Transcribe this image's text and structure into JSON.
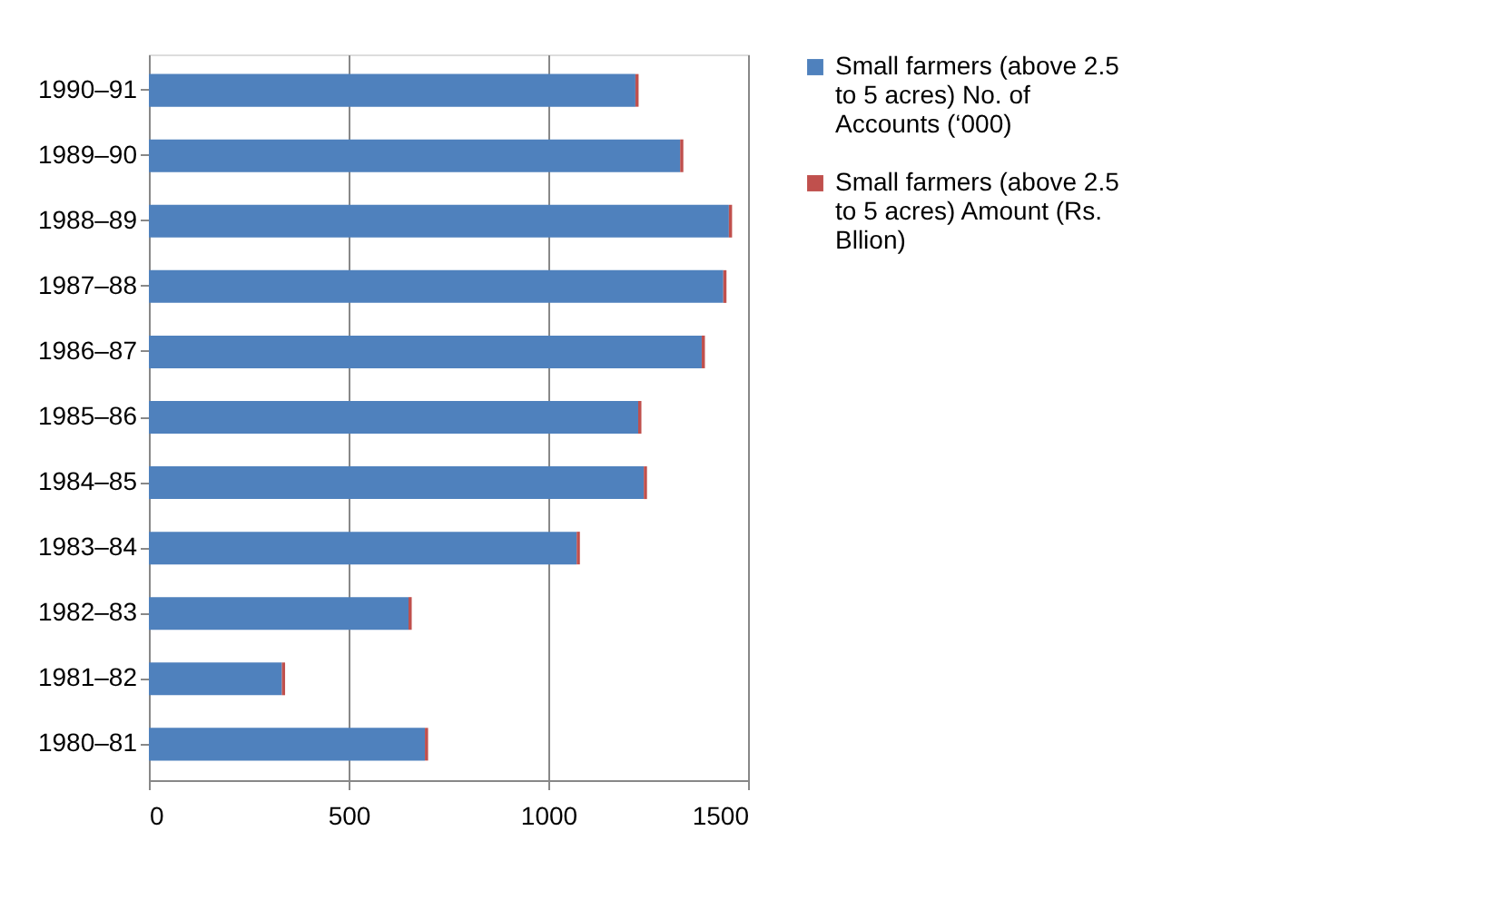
{
  "chart_data": {
    "type": "bar",
    "orientation": "horizontal",
    "stacked": true,
    "categories": [
      "1990–91",
      "1989–90",
      "1988–89",
      "1987–88",
      "1986–87",
      "1985–86",
      "1984–85",
      "1983–84",
      "1982–83",
      "1981–82",
      "1980–81"
    ],
    "series": [
      {
        "name": "Small farmers (above 2.5 to 5 acres) No. of Accounts (‘000)",
        "color": "#4f81bd",
        "values": [
          1218,
          1330,
          1452,
          1438,
          1384,
          1225,
          1239,
          1071,
          650,
          333,
          691
        ]
      },
      {
        "name": "Small farmers (above 2.5 to 5 acres) Amount  (Rs. Bllion)",
        "color": "#c0504d",
        "values": [
          8,
          8,
          8,
          8,
          8,
          8,
          8,
          8,
          8,
          8,
          8
        ]
      }
    ],
    "xlim": [
      0,
      1500
    ],
    "xticks": [
      0,
      500,
      1000,
      1500
    ],
    "grid": "x",
    "legend": "right"
  }
}
